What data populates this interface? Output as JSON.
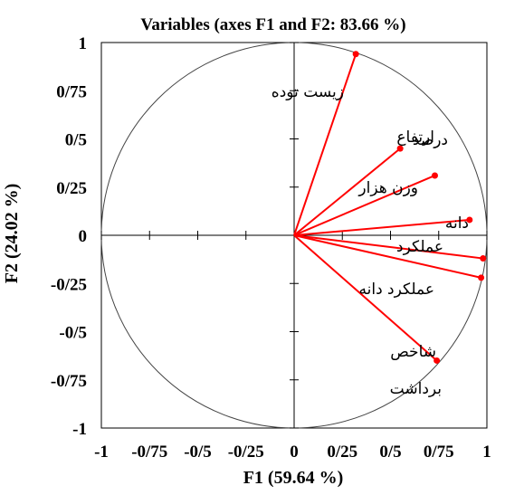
{
  "chart_data": {
    "type": "scatter",
    "title": "Variables (axes F1 and F2: 83.66 %)",
    "xlabel": "F1 (59.64 %)",
    "ylabel": "F2 (24.02 %)",
    "xlim": [
      -1,
      1
    ],
    "ylim": [
      -1,
      1
    ],
    "grid": false,
    "legend": "none",
    "x_ticks": [
      "-1",
      "-0/75",
      "-0/5",
      "-0/25",
      "0",
      "0/25",
      "0/5",
      "0/75",
      "1"
    ],
    "y_ticks": [
      "1",
      "0/75",
      "0/5",
      "0/25",
      "0",
      "-0/25",
      "-0/5",
      "-0/75",
      "-1"
    ],
    "vectors_color": "#ff0000",
    "points": [
      {
        "label": "زیست توده",
        "x": 0.32,
        "y": 0.94
      },
      {
        "label": "ارتفاع",
        "x": 0.55,
        "y": 0.45
      },
      {
        "label": "درصد",
        "x": 0.55,
        "y": 0.45
      },
      {
        "label": "وزن هزار",
        "x": 0.73,
        "y": 0.31
      },
      {
        "label": "دانه",
        "x": 0.91,
        "y": 0.08
      },
      {
        "label": "عملکرد",
        "x": 0.98,
        "y": -0.12
      },
      {
        "label": "عملکرد دانه",
        "x": 0.97,
        "y": -0.22
      },
      {
        "label": "شاخص",
        "x": 0.74,
        "y": -0.65
      },
      {
        "label": "برداشت",
        "x": 0.74,
        "y": -0.65
      }
    ]
  }
}
